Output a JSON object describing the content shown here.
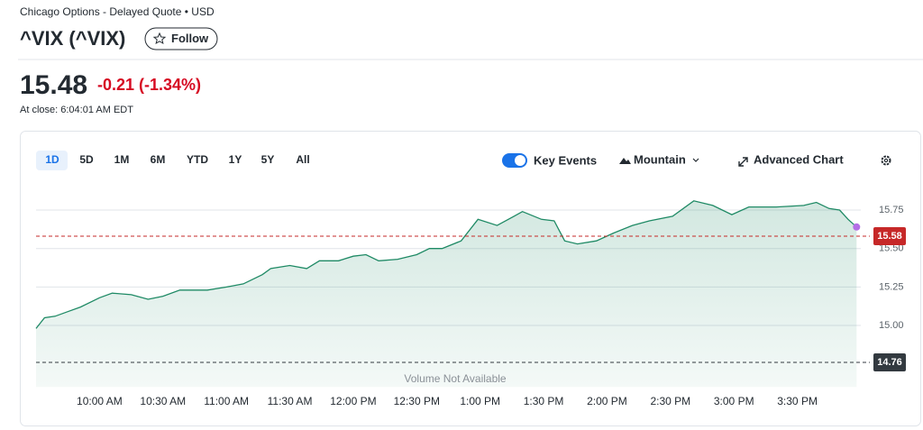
{
  "header": {
    "exchange": "Chicago Options - Delayed Quote • USD",
    "symbol": "^VIX (^VIX)",
    "follow": "Follow"
  },
  "quote": {
    "price": "15.48",
    "change": "-0.21 (-1.34%)",
    "time": "At close: 6:04:01 AM EDT"
  },
  "toolbar": {
    "ranges": [
      "1D",
      "5D",
      "1M",
      "6M",
      "YTD",
      "1Y",
      "5Y",
      "All"
    ],
    "key_events": "Key Events",
    "chart_type": "Mountain",
    "advanced": "Advanced Chart"
  },
  "chart_data": {
    "type": "area",
    "color": "#1f8a65",
    "x": [
      570,
      574,
      579,
      585,
      591,
      600,
      606,
      615,
      623,
      630,
      638,
      651,
      660,
      668,
      677,
      681,
      690,
      698,
      704,
      713,
      720,
      726,
      732,
      741,
      750,
      756,
      762,
      771,
      779,
      788,
      796,
      800,
      809,
      815,
      820,
      826,
      835,
      843,
      852,
      860,
      871,
      881,
      890,
      899,
      907,
      920,
      933,
      939,
      945,
      950,
      954,
      958
    ],
    "values": [
      14.98,
      15.05,
      15.06,
      15.09,
      15.12,
      15.18,
      15.21,
      15.2,
      15.17,
      15.19,
      15.23,
      15.23,
      15.25,
      15.27,
      15.33,
      15.37,
      15.39,
      15.37,
      15.42,
      15.42,
      15.45,
      15.46,
      15.42,
      15.43,
      15.46,
      15.5,
      15.5,
      15.55,
      15.69,
      15.65,
      15.71,
      15.74,
      15.69,
      15.68,
      15.55,
      15.53,
      15.55,
      15.6,
      15.65,
      15.68,
      15.71,
      15.81,
      15.78,
      15.72,
      15.77,
      15.77,
      15.78,
      15.8,
      15.76,
      15.75,
      15.69,
      15.64
    ],
    "xlim": [
      570,
      960
    ],
    "xticks": [
      {
        "value": 600,
        "label": "10:00 AM"
      },
      {
        "value": 630,
        "label": "10:30 AM"
      },
      {
        "value": 660,
        "label": "11:00 AM"
      },
      {
        "value": 690,
        "label": "11:30 AM"
      },
      {
        "value": 720,
        "label": "12:00 PM"
      },
      {
        "value": 750,
        "label": "12:30 PM"
      },
      {
        "value": 780,
        "label": "1:00 PM"
      },
      {
        "value": 810,
        "label": "1:30 PM"
      },
      {
        "value": 840,
        "label": "2:00 PM"
      },
      {
        "value": 870,
        "label": "2:30 PM"
      },
      {
        "value": 900,
        "label": "3:00 PM"
      },
      {
        "value": 930,
        "label": "3:30 PM"
      }
    ],
    "ylim": [
      14.6,
      15.94
    ],
    "yticks": [
      {
        "value": 15,
        "label": "15.00"
      },
      15.25,
      {
        "value": 15.5,
        "label": "15.50"
      },
      15.75
    ],
    "grid": true,
    "reference_lines": [
      {
        "value": 15.58,
        "color": "#c62828"
      },
      {
        "value": 14.76,
        "color": "#333a40"
      }
    ],
    "note": "Volume Not Available"
  }
}
